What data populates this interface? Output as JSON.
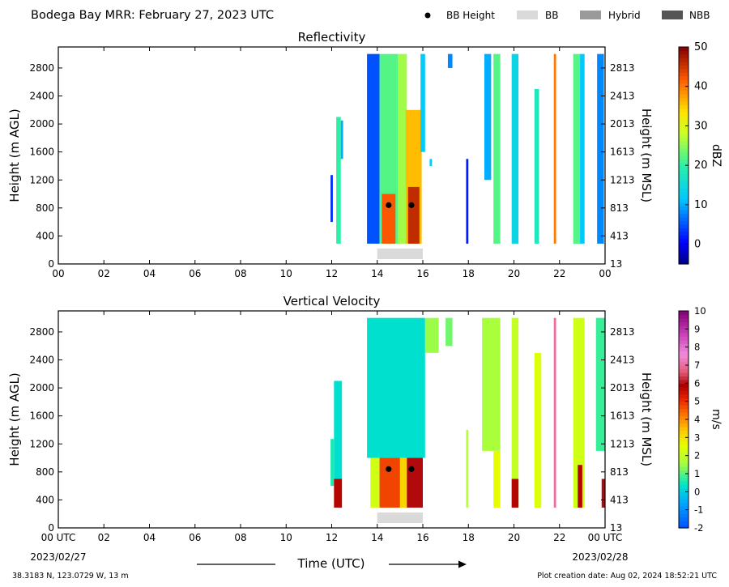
{
  "header": {
    "title": "Bodega Bay MRR:  February 27, 2023 UTC",
    "legend": [
      {
        "label": "BB Height",
        "kind": "dot",
        "color": "#000000"
      },
      {
        "label": "BB",
        "kind": "box",
        "color": "#dadada"
      },
      {
        "label": "Hybrid",
        "kind": "box",
        "color": "#9a9a9a"
      },
      {
        "label": "NBB",
        "kind": "box",
        "color": "#555555"
      }
    ]
  },
  "footer": {
    "location": "38.3183 N, 123.0729 W, 13 m",
    "created": "Plot creation date: Aug 02, 2024 18:52:21 UTC",
    "xlabel": "Time (UTC)",
    "start_date": "2023/02/27",
    "end_date": "2023/02/28"
  },
  "chart_data": [
    {
      "type": "heatmap",
      "title": "Reflectivity",
      "ylabel": "Height (m AGL)",
      "y2label": "Height (m MSL)",
      "colorbar_label": "dBZ",
      "xlim": [
        0,
        24
      ],
      "ylim": [
        0,
        3100
      ],
      "x_ticks": [
        "00",
        "02",
        "04",
        "06",
        "08",
        "10",
        "12",
        "14",
        "16",
        "18",
        "20",
        "22",
        "00"
      ],
      "y_ticks": [
        0,
        400,
        800,
        1200,
        1600,
        2000,
        2400,
        2800
      ],
      "y2_ticks": [
        "13",
        "413",
        "813",
        "1213",
        "1613",
        "2013",
        "2413",
        "2813"
      ],
      "colorbar": {
        "min": -5,
        "max": 50,
        "ticks": [
          "0",
          "10",
          "20",
          "30",
          "40",
          "50"
        ],
        "tick_values": [
          0,
          10,
          20,
          30,
          40,
          50
        ],
        "scale": "jet"
      },
      "bb_height_points": [
        {
          "x": 14.5,
          "y": 840
        },
        {
          "x": 15.5,
          "y": 840
        }
      ],
      "bb_bar": {
        "type": "BB",
        "x0": 14.0,
        "x1": 16.0
      },
      "echo_columns": [
        {
          "x0": 11.95,
          "x1": 12.05,
          "y0": 600,
          "y1": 1270,
          "v": 3
        },
        {
          "x0": 12.2,
          "x1": 12.4,
          "y0": 290,
          "y1": 2100,
          "v": 20
        },
        {
          "x0": 12.4,
          "x1": 12.5,
          "y0": 1500,
          "y1": 2050,
          "v": 10
        },
        {
          "x0": 13.55,
          "x1": 14.1,
          "y0": 290,
          "y1": 3000,
          "v": 5
        },
        {
          "x0": 14.1,
          "x1": 14.9,
          "y0": 290,
          "y1": 3000,
          "v": 22
        },
        {
          "x0": 14.2,
          "x1": 14.8,
          "y0": 290,
          "y1": 1000,
          "v": 42
        },
        {
          "x0": 14.9,
          "x1": 15.3,
          "y0": 290,
          "y1": 3000,
          "v": 26
        },
        {
          "x0": 15.25,
          "x1": 15.95,
          "y0": 290,
          "y1": 2200,
          "v": 36
        },
        {
          "x0": 15.35,
          "x1": 15.85,
          "y0": 290,
          "y1": 1100,
          "v": 46
        },
        {
          "x0": 15.9,
          "x1": 16.1,
          "y0": 1600,
          "y1": 3000,
          "v": 12
        },
        {
          "x0": 16.3,
          "x1": 16.4,
          "y0": 1400,
          "y1": 1500,
          "v": 12
        },
        {
          "x0": 17.1,
          "x1": 17.3,
          "y0": 2800,
          "y1": 3000,
          "v": 8
        },
        {
          "x0": 17.9,
          "x1": 18.0,
          "y0": 290,
          "y1": 1500,
          "v": 2
        },
        {
          "x0": 18.7,
          "x1": 19.0,
          "y0": 1200,
          "y1": 3000,
          "v": 10
        },
        {
          "x0": 19.1,
          "x1": 19.4,
          "y0": 290,
          "y1": 3000,
          "v": 22
        },
        {
          "x0": 19.9,
          "x1": 20.2,
          "y0": 290,
          "y1": 3000,
          "v": 14
        },
        {
          "x0": 20.9,
          "x1": 21.1,
          "y0": 290,
          "y1": 2500,
          "v": 18
        },
        {
          "x0": 21.75,
          "x1": 21.85,
          "y0": 290,
          "y1": 3000,
          "v": 40
        },
        {
          "x0": 22.6,
          "x1": 22.9,
          "y0": 290,
          "y1": 3000,
          "v": 22
        },
        {
          "x0": 22.9,
          "x1": 23.1,
          "y0": 290,
          "y1": 3000,
          "v": 12
        },
        {
          "x0": 23.65,
          "x1": 23.95,
          "y0": 290,
          "y1": 3000,
          "v": 8
        }
      ]
    },
    {
      "type": "heatmap",
      "title": "Vertical Velocity",
      "ylabel": "Height (m AGL)",
      "y2label": "Height (m MSL)",
      "colorbar_label": "m/s",
      "xlim": [
        0,
        24
      ],
      "ylim": [
        0,
        3100
      ],
      "x_ticks": [
        "00 UTC",
        "02",
        "04",
        "06",
        "08",
        "10",
        "12",
        "14",
        "16",
        "18",
        "20",
        "22",
        "00 UTC"
      ],
      "y_ticks": [
        0,
        400,
        800,
        1200,
        1600,
        2000,
        2400,
        2800
      ],
      "y2_ticks": [
        "13",
        "413",
        "813",
        "1213",
        "1613",
        "2013",
        "2413",
        "2813"
      ],
      "colorbar": {
        "min": -2,
        "max": 10,
        "ticks": [
          "-2",
          "-1",
          "0",
          "1",
          "2",
          "3",
          "4",
          "5",
          "6",
          "7",
          "8",
          "9",
          "10"
        ],
        "tick_values": [
          -2,
          -1,
          0,
          1,
          2,
          3,
          4,
          5,
          6,
          7,
          8,
          9,
          10
        ],
        "scale": "velocity"
      },
      "bb_height_points": [
        {
          "x": 14.5,
          "y": 840
        },
        {
          "x": 15.5,
          "y": 840
        }
      ],
      "bb_bar": {
        "type": "BB",
        "x0": 14.0,
        "x1": 16.0
      },
      "echo_columns": [
        {
          "x0": 11.95,
          "x1": 12.1,
          "y0": 600,
          "y1": 1270,
          "v": 0.6
        },
        {
          "x0": 12.1,
          "x1": 12.45,
          "y0": 700,
          "y1": 2100,
          "v": 0.3
        },
        {
          "x0": 12.1,
          "x1": 12.45,
          "y0": 290,
          "y1": 700,
          "v": 5.8
        },
        {
          "x0": 13.55,
          "x1": 16.1,
          "y0": 1000,
          "y1": 3000,
          "v": 0.3
        },
        {
          "x0": 13.7,
          "x1": 14.1,
          "y0": 290,
          "y1": 1000,
          "v": 2.2
        },
        {
          "x0": 14.1,
          "x1": 15.0,
          "y0": 290,
          "y1": 1000,
          "v": 4.8
        },
        {
          "x0": 15.0,
          "x1": 15.3,
          "y0": 290,
          "y1": 1000,
          "v": 3.2
        },
        {
          "x0": 15.3,
          "x1": 16.0,
          "y0": 290,
          "y1": 1000,
          "v": 6.0
        },
        {
          "x0": 16.1,
          "x1": 16.7,
          "y0": 2500,
          "y1": 3000,
          "v": 1.5
        },
        {
          "x0": 17.0,
          "x1": 17.3,
          "y0": 2600,
          "y1": 3000,
          "v": 1.2
        },
        {
          "x0": 17.9,
          "x1": 18.0,
          "y0": 290,
          "y1": 1400,
          "v": 1.8
        },
        {
          "x0": 18.6,
          "x1": 19.4,
          "y0": 1100,
          "y1": 3000,
          "v": 1.6
        },
        {
          "x0": 19.1,
          "x1": 19.4,
          "y0": 290,
          "y1": 1100,
          "v": 2.6
        },
        {
          "x0": 19.9,
          "x1": 20.2,
          "y0": 290,
          "y1": 3000,
          "v": 2.0
        },
        {
          "x0": 19.9,
          "x1": 20.2,
          "y0": 290,
          "y1": 700,
          "v": 5.8
        },
        {
          "x0": 20.9,
          "x1": 21.2,
          "y0": 290,
          "y1": 2500,
          "v": 2.4
        },
        {
          "x0": 21.75,
          "x1": 21.85,
          "y0": 290,
          "y1": 3000,
          "v": 7.0
        },
        {
          "x0": 22.6,
          "x1": 23.1,
          "y0": 290,
          "y1": 3000,
          "v": 2.2
        },
        {
          "x0": 22.8,
          "x1": 23.0,
          "y0": 290,
          "y1": 900,
          "v": 5.8
        },
        {
          "x0": 23.6,
          "x1": 24.0,
          "y0": 1100,
          "y1": 3000,
          "v": 0.8
        },
        {
          "x0": 23.85,
          "x1": 24.0,
          "y0": 290,
          "y1": 700,
          "v": 6.0
        }
      ]
    }
  ]
}
